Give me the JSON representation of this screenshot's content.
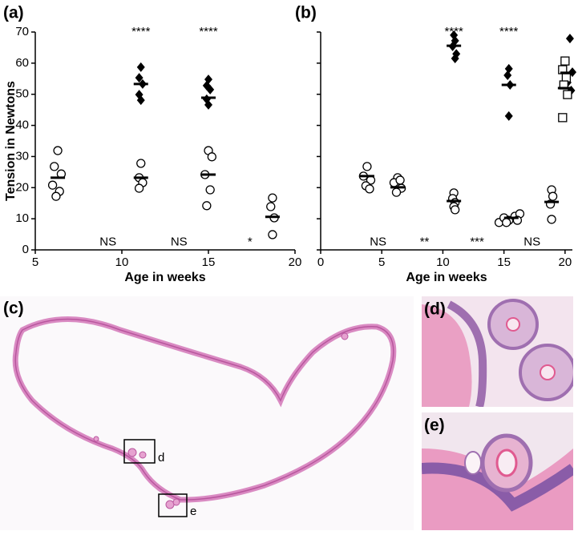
{
  "chart_data": [
    {
      "type": "scatter",
      "panel_label": "(a)",
      "y_label": "Tension in Newtons",
      "x_label": "Age in weeks",
      "xlim": [
        5,
        20
      ],
      "xticks": [
        5,
        10,
        15,
        20
      ],
      "ylim": [
        0,
        70
      ],
      "yticks": [
        0,
        10,
        20,
        30,
        40,
        50,
        60,
        70
      ],
      "show_ytick_labels": true,
      "series": [
        {
          "marker": "circle",
          "color": "#000000",
          "x": [
            6.3,
            6.1,
            6.5,
            6.0,
            6.4,
            6.2,
            11.1,
            11.0,
            11.2,
            11.0,
            15.0,
            15.2,
            14.8,
            15.1,
            14.9,
            18.7,
            18.6,
            18.8,
            18.7
          ],
          "values": [
            31.9,
            26.8,
            24.4,
            20.8,
            18.8,
            17.2,
            27.8,
            23.2,
            21.6,
            19.8,
            31.9,
            29.9,
            24.2,
            19.3,
            14.2,
            16.7,
            13.9,
            10.3,
            4.9
          ]
        },
        {
          "marker": "diamond",
          "color": "#000000",
          "x": [
            11.1,
            11.0,
            11.2,
            11.0,
            11.1,
            15.0,
            14.9,
            15.1,
            14.9,
            15.0
          ],
          "values": [
            58.7,
            55.3,
            53.3,
            49.9,
            48.1,
            54.8,
            52.8,
            51.5,
            48.4,
            46.6
          ]
        },
        {
          "marker": "mean",
          "color": "#000000",
          "x": [
            6.3,
            11.1,
            11.1,
            15.0,
            15.0,
            18.7
          ],
          "values": [
            23.2,
            53.3,
            23.2,
            48.9,
            24.2,
            10.6
          ]
        }
      ],
      "annotations": [
        {
          "text": "****",
          "x": 11.1,
          "y": 70
        },
        {
          "text": "****",
          "x": 15.0,
          "y": 70
        },
        {
          "text": "NS",
          "x": 9.2,
          "y": 2.5
        },
        {
          "text": "NS",
          "x": 13.3,
          "y": 2.5
        },
        {
          "text": "*",
          "x": 17.4,
          "y": 2.5
        }
      ]
    },
    {
      "type": "scatter",
      "panel_label": "(b)",
      "x_label": "Age in weeks",
      "xlim": [
        0,
        20.6
      ],
      "xticks": [
        0,
        5,
        10,
        15,
        20
      ],
      "ylim": [
        0,
        70
      ],
      "yticks": [
        0,
        10,
        20,
        30,
        40,
        50,
        60,
        70
      ],
      "show_ytick_labels": false,
      "series": [
        {
          "marker": "circle",
          "color": "#000000",
          "x": [
            3.8,
            3.5,
            4.1,
            3.7,
            4.0,
            6.3,
            6.0,
            6.6,
            6.2,
            6.5,
            10.9,
            10.8,
            11.0,
            10.9,
            11.0,
            14.6,
            15.0,
            15.4,
            15.9,
            16.3,
            15.2,
            16.1,
            18.9,
            19.0,
            18.8,
            18.9
          ],
          "values": [
            26.8,
            23.7,
            22.4,
            20.6,
            19.6,
            23.2,
            21.6,
            19.8,
            18.5,
            22.4,
            18.3,
            16.5,
            15.2,
            13.9,
            12.9,
            8.8,
            10.3,
            9.5,
            10.8,
            11.6,
            8.8,
            9.5,
            19.3,
            17.2,
            14.7,
            9.8
          ]
        },
        {
          "marker": "diamond",
          "color": "#000000",
          "x": [
            10.9,
            11.0,
            10.8,
            11.1,
            11.0,
            15.4,
            15.3,
            15.5,
            15.4,
            20.4,
            20.6,
            20.2,
            20.5
          ],
          "values": [
            69.0,
            67.2,
            65.4,
            63.0,
            61.5,
            58.2,
            56.1,
            53.0,
            43.0,
            67.9,
            57.1,
            53.8,
            51.2
          ]
        },
        {
          "marker": "square",
          "color": "#000000",
          "x": [
            20.0,
            19.8,
            20.1,
            19.9,
            20.2,
            19.8
          ],
          "values": [
            60.7,
            57.9,
            55.3,
            53.0,
            49.9,
            42.5
          ]
        },
        {
          "marker": "mean",
          "color": "#000000",
          "x": [
            3.8,
            6.3,
            10.9,
            10.9,
            15.4,
            15.6,
            18.9,
            20.2,
            20.0
          ],
          "values": [
            23.7,
            20.1,
            65.6,
            15.7,
            53.0,
            10.3,
            15.4,
            56.9,
            52.0
          ]
        }
      ],
      "annotations": [
        {
          "text": "****",
          "x": 10.9,
          "y": 70
        },
        {
          "text": "****",
          "x": 15.4,
          "y": 70
        },
        {
          "text": "NS",
          "x": 4.7,
          "y": 2.5
        },
        {
          "text": "**",
          "x": 8.5,
          "y": 2.5
        },
        {
          "text": "***",
          "x": 12.8,
          "y": 2.5
        },
        {
          "text": "NS",
          "x": 17.3,
          "y": 2.5
        }
      ]
    }
  ],
  "figures": {
    "c": {
      "label": "(c)",
      "box_d": "d",
      "box_e": "e"
    },
    "d": {
      "label": "(d)"
    },
    "e": {
      "label": "(e)"
    }
  }
}
